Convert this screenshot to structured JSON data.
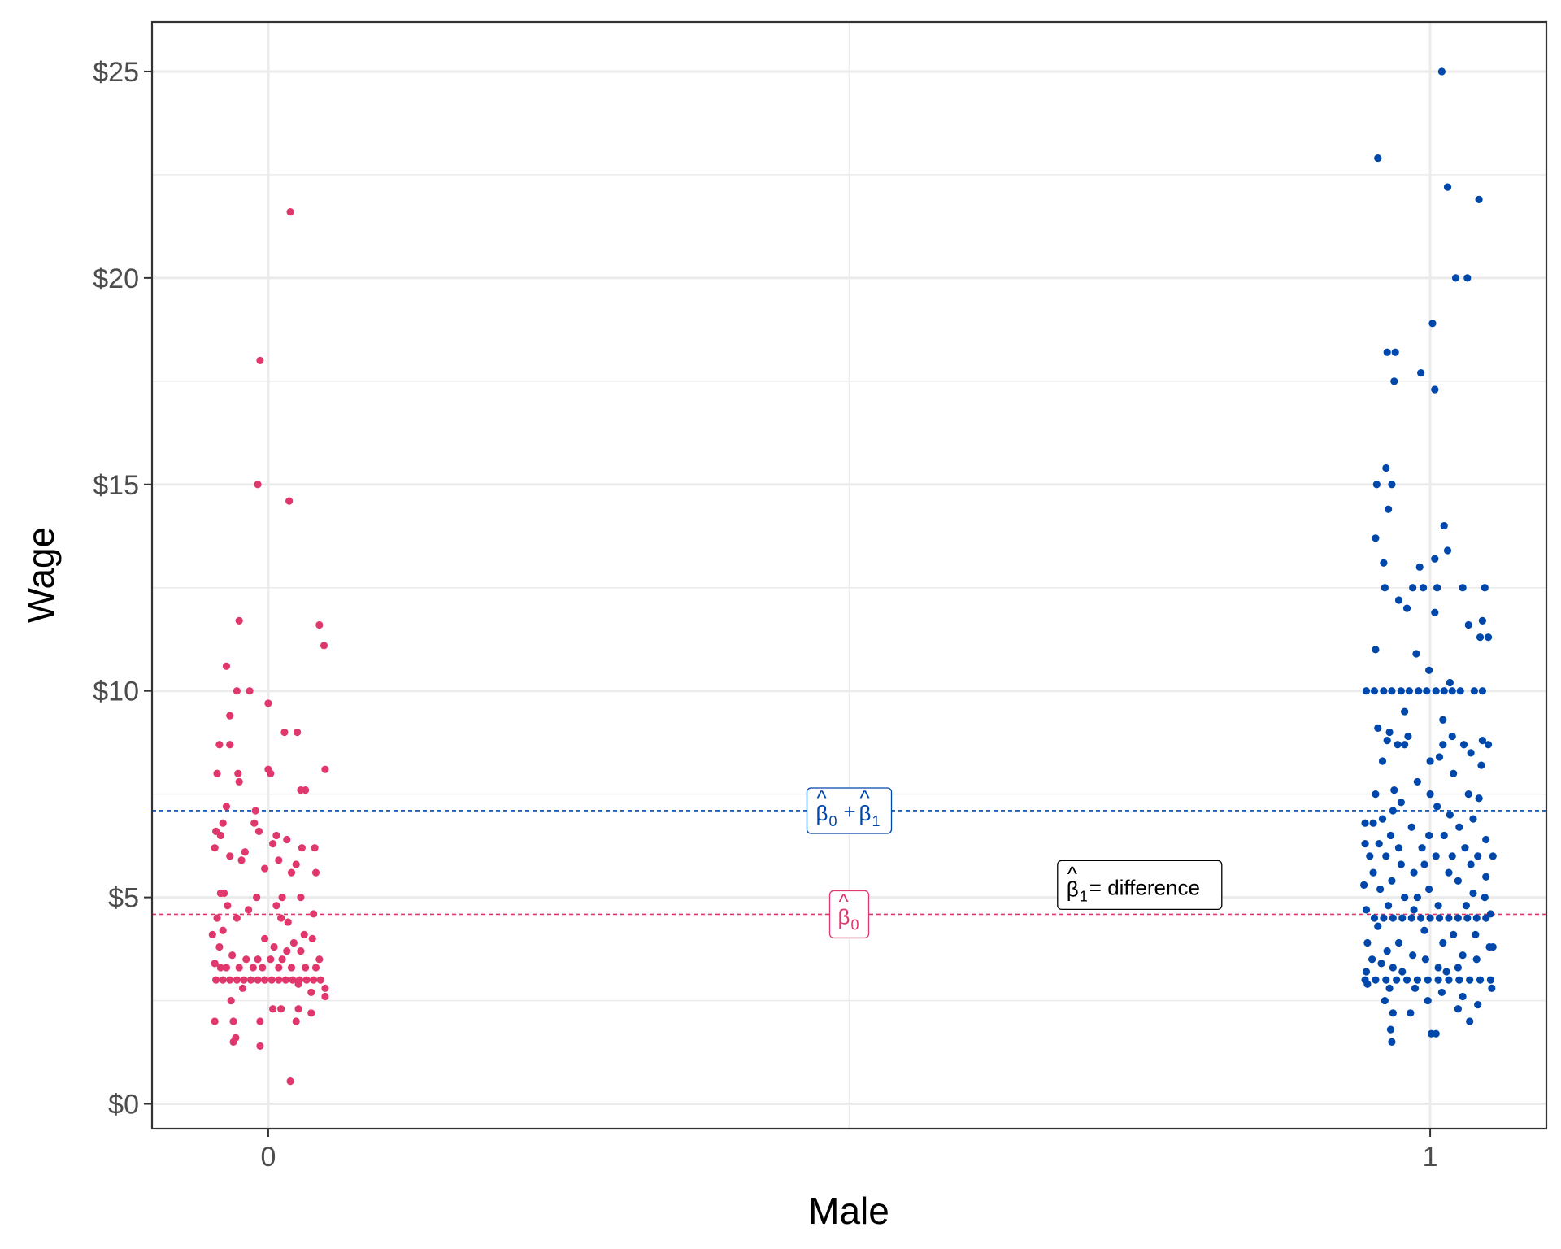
{
  "chart_data": {
    "type": "scatter",
    "xlabel": "Male",
    "ylabel": "Wage",
    "x_ticks": [
      "0",
      "1"
    ],
    "y_ticks": [
      "$0",
      "$5",
      "$10",
      "$15",
      "$20",
      "$25"
    ],
    "y_tick_values": [
      0,
      5,
      10,
      15,
      20,
      25
    ],
    "ylim": [
      -0.6,
      26.2
    ],
    "xlim": [
      -0.1,
      1.1
    ],
    "grid": true,
    "legend": "none",
    "colors": {
      "female": "#e0386c",
      "male": "#0047ab",
      "difference": "#000000"
    },
    "hlines": [
      {
        "y": 7.1,
        "color": "#0047ab",
        "style": "dashed"
      },
      {
        "y": 4.59,
        "color": "#e0386c",
        "style": "dashed"
      }
    ],
    "annotations": {
      "b0b1": {
        "text": "β̂0 + β̂1",
        "x": 0.5,
        "y": 7.1,
        "color": "#0047ab"
      },
      "b0": {
        "text": "β̂0",
        "x": 0.5,
        "y": 4.59,
        "color": "#e0386c"
      },
      "diff": {
        "beta": "β",
        "hat": "^",
        "sub": "1",
        "label": "= difference",
        "x": 0.75,
        "y": 5.3,
        "color": "#000000"
      }
    },
    "series": [
      {
        "group": "0",
        "color": "#e0386c",
        "points": [
          [
            0.019,
            21.6
          ],
          [
            -0.007,
            18.0
          ],
          [
            -0.009,
            15.0
          ],
          [
            0.018,
            14.6
          ],
          [
            -0.025,
            11.7
          ],
          [
            0.044,
            11.6
          ],
          [
            0.048,
            11.1
          ],
          [
            -0.036,
            10.6
          ],
          [
            -0.027,
            10.0
          ],
          [
            -0.016,
            10.0
          ],
          [
            0.0,
            9.7
          ],
          [
            -0.033,
            9.4
          ],
          [
            0.014,
            9.0
          ],
          [
            0.025,
            9.0
          ],
          [
            -0.042,
            8.7
          ],
          [
            -0.033,
            8.7
          ],
          [
            0.0,
            8.1
          ],
          [
            0.049,
            8.1
          ],
          [
            -0.044,
            8.0
          ],
          [
            -0.026,
            8.0
          ],
          [
            0.002,
            8.0
          ],
          [
            -0.025,
            7.8
          ],
          [
            0.028,
            7.6
          ],
          [
            0.032,
            7.6
          ],
          [
            -0.036,
            7.2
          ],
          [
            -0.011,
            7.1
          ],
          [
            -0.039,
            6.8
          ],
          [
            -0.012,
            6.8
          ],
          [
            -0.008,
            6.6
          ],
          [
            -0.045,
            6.6
          ],
          [
            -0.041,
            6.5
          ],
          [
            0.007,
            6.5
          ],
          [
            0.016,
            6.4
          ],
          [
            0.004,
            6.3
          ],
          [
            0.029,
            6.2
          ],
          [
            0.04,
            6.2
          ],
          [
            -0.046,
            6.2
          ],
          [
            -0.02,
            6.1
          ],
          [
            -0.033,
            6.0
          ],
          [
            -0.023,
            5.9
          ],
          [
            0.009,
            5.9
          ],
          [
            0.024,
            5.8
          ],
          [
            -0.003,
            5.7
          ],
          [
            0.041,
            5.6
          ],
          [
            0.02,
            5.6
          ],
          [
            -0.041,
            5.1
          ],
          [
            -0.038,
            5.1
          ],
          [
            -0.01,
            5.0
          ],
          [
            0.012,
            5.0
          ],
          [
            0.028,
            5.0
          ],
          [
            -0.035,
            4.8
          ],
          [
            0.007,
            4.8
          ],
          [
            -0.017,
            4.7
          ],
          [
            0.039,
            4.6
          ],
          [
            -0.044,
            4.5
          ],
          [
            -0.027,
            4.5
          ],
          [
            0.011,
            4.5
          ],
          [
            0.017,
            4.4
          ],
          [
            -0.039,
            4.2
          ],
          [
            -0.048,
            4.1
          ],
          [
            0.031,
            4.1
          ],
          [
            -0.003,
            4.0
          ],
          [
            0.038,
            4.0
          ],
          [
            0.022,
            3.9
          ],
          [
            -0.042,
            3.8
          ],
          [
            0.005,
            3.8
          ],
          [
            0.016,
            3.7
          ],
          [
            0.028,
            3.7
          ],
          [
            -0.031,
            3.6
          ],
          [
            -0.019,
            3.5
          ],
          [
            -0.009,
            3.5
          ],
          [
            0.002,
            3.5
          ],
          [
            0.012,
            3.5
          ],
          [
            0.044,
            3.5
          ],
          [
            -0.046,
            3.4
          ],
          [
            -0.041,
            3.3
          ],
          [
            -0.036,
            3.3
          ],
          [
            -0.025,
            3.3
          ],
          [
            -0.013,
            3.3
          ],
          [
            -0.005,
            3.3
          ],
          [
            0.009,
            3.3
          ],
          [
            0.02,
            3.3
          ],
          [
            0.032,
            3.3
          ],
          [
            0.041,
            3.3
          ],
          [
            -0.045,
            3.0
          ],
          [
            -0.039,
            3.0
          ],
          [
            -0.033,
            3.0
          ],
          [
            -0.027,
            3.0
          ],
          [
            -0.021,
            3.0
          ],
          [
            -0.015,
            3.0
          ],
          [
            -0.009,
            3.0
          ],
          [
            -0.003,
            3.0
          ],
          [
            0.003,
            3.0
          ],
          [
            0.009,
            3.0
          ],
          [
            0.015,
            3.0
          ],
          [
            0.021,
            3.0
          ],
          [
            0.027,
            3.0
          ],
          [
            0.033,
            3.0
          ],
          [
            0.039,
            3.0
          ],
          [
            0.045,
            3.0
          ],
          [
            0.049,
            2.8
          ],
          [
            -0.022,
            2.8
          ],
          [
            0.026,
            2.9
          ],
          [
            0.037,
            2.7
          ],
          [
            -0.032,
            2.5
          ],
          [
            0.004,
            2.3
          ],
          [
            0.011,
            2.3
          ],
          [
            0.026,
            2.3
          ],
          [
            0.037,
            2.2
          ],
          [
            0.049,
            2.6
          ],
          [
            -0.046,
            2.0
          ],
          [
            -0.03,
            2.0
          ],
          [
            -0.007,
            2.0
          ],
          [
            0.024,
            2.0
          ],
          [
            -0.028,
            1.6
          ],
          [
            -0.03,
            1.5
          ],
          [
            -0.007,
            1.4
          ],
          [
            0.019,
            0.55
          ]
        ]
      },
      {
        "group": "1",
        "color": "#0047ab",
        "points": [
          [
            1.01,
            25.0
          ],
          [
            0.955,
            22.9
          ],
          [
            1.015,
            22.2
          ],
          [
            1.042,
            21.9
          ],
          [
            1.022,
            20.0
          ],
          [
            1.032,
            20.0
          ],
          [
            1.002,
            18.9
          ],
          [
            0.963,
            18.2
          ],
          [
            0.97,
            18.2
          ],
          [
            0.992,
            17.7
          ],
          [
            0.969,
            17.5
          ],
          [
            1.004,
            17.3
          ],
          [
            0.962,
            15.4
          ],
          [
            0.954,
            15.0
          ],
          [
            0.967,
            15.0
          ],
          [
            1.012,
            14.0
          ],
          [
            0.964,
            14.4
          ],
          [
            0.953,
            13.7
          ],
          [
            1.015,
            13.4
          ],
          [
            1.004,
            13.2
          ],
          [
            0.96,
            13.1
          ],
          [
            0.991,
            13.0
          ],
          [
            0.961,
            12.5
          ],
          [
            0.985,
            12.5
          ],
          [
            0.994,
            12.5
          ],
          [
            1.006,
            12.5
          ],
          [
            1.028,
            12.5
          ],
          [
            1.047,
            12.5
          ],
          [
            0.973,
            12.2
          ],
          [
            0.98,
            12.0
          ],
          [
            1.004,
            11.9
          ],
          [
            1.045,
            11.7
          ],
          [
            1.033,
            11.6
          ],
          [
            1.05,
            11.3
          ],
          [
            1.043,
            11.3
          ],
          [
            0.953,
            11.0
          ],
          [
            0.988,
            10.9
          ],
          [
            0.999,
            10.5
          ],
          [
            1.017,
            10.2
          ],
          [
            0.945,
            10.0
          ],
          [
            0.952,
            10.0
          ],
          [
            0.96,
            10.0
          ],
          [
            0.967,
            10.0
          ],
          [
            0.975,
            10.0
          ],
          [
            0.982,
            10.0
          ],
          [
            0.99,
            10.0
          ],
          [
            0.997,
            10.0
          ],
          [
            1.005,
            10.0
          ],
          [
            1.012,
            10.0
          ],
          [
            1.019,
            10.0
          ],
          [
            1.026,
            10.0
          ],
          [
            1.038,
            10.0
          ],
          [
            1.045,
            10.0
          ],
          [
            0.978,
            9.5
          ],
          [
            1.011,
            9.3
          ],
          [
            0.955,
            9.1
          ],
          [
            0.965,
            9.0
          ],
          [
            0.981,
            8.9
          ],
          [
            1.019,
            8.9
          ],
          [
            1.045,
            8.8
          ],
          [
            0.963,
            8.8
          ],
          [
            0.972,
            8.7
          ],
          [
            0.978,
            8.7
          ],
          [
            1.011,
            8.7
          ],
          [
            1.029,
            8.7
          ],
          [
            1.05,
            8.7
          ],
          [
            1.035,
            8.5
          ],
          [
            1.008,
            8.4
          ],
          [
            0.959,
            8.3
          ],
          [
            1.0,
            8.3
          ],
          [
            1.044,
            8.2
          ],
          [
            1.02,
            8.0
          ],
          [
            0.989,
            7.8
          ],
          [
            0.969,
            7.6
          ],
          [
            0.953,
            7.5
          ],
          [
            1.0,
            7.5
          ],
          [
            1.033,
            7.5
          ],
          [
            1.042,
            7.4
          ],
          [
            0.975,
            7.3
          ],
          [
            1.006,
            7.2
          ],
          [
            0.968,
            7.1
          ],
          [
            1.017,
            7.0
          ],
          [
            0.959,
            6.9
          ],
          [
            1.037,
            6.9
          ],
          [
            0.944,
            6.8
          ],
          [
            0.951,
            6.8
          ],
          [
            0.984,
            6.7
          ],
          [
            1.025,
            6.7
          ],
          [
            0.966,
            6.5
          ],
          [
            0.999,
            6.5
          ],
          [
            1.012,
            6.5
          ],
          [
            1.048,
            6.4
          ],
          [
            0.944,
            6.3
          ],
          [
            0.956,
            6.3
          ],
          [
            0.973,
            6.2
          ],
          [
            0.993,
            6.2
          ],
          [
            1.03,
            6.2
          ],
          [
            0.948,
            6.0
          ],
          [
            0.962,
            6.0
          ],
          [
            1.005,
            6.0
          ],
          [
            1.019,
            6.0
          ],
          [
            1.041,
            6.0
          ],
          [
            1.054,
            6.0
          ],
          [
            0.975,
            5.8
          ],
          [
            0.995,
            5.8
          ],
          [
            1.035,
            5.8
          ],
          [
            0.951,
            5.6
          ],
          [
            0.986,
            5.6
          ],
          [
            1.016,
            5.6
          ],
          [
            1.048,
            5.5
          ],
          [
            0.967,
            5.4
          ],
          [
            1.024,
            5.4
          ],
          [
            0.943,
            5.3
          ],
          [
            0.957,
            5.2
          ],
          [
            0.999,
            5.2
          ],
          [
            1.037,
            5.1
          ],
          [
            0.978,
            5.0
          ],
          [
            0.989,
            5.0
          ],
          [
            1.047,
            5.0
          ],
          [
            0.964,
            4.8
          ],
          [
            1.007,
            4.8
          ],
          [
            1.031,
            4.8
          ],
          [
            0.945,
            4.7
          ],
          [
            0.986,
            4.7
          ],
          [
            1.052,
            4.6
          ],
          [
            0.952,
            4.5
          ],
          [
            0.96,
            4.5
          ],
          [
            0.968,
            4.5
          ],
          [
            0.976,
            4.5
          ],
          [
            0.984,
            4.5
          ],
          [
            0.992,
            4.5
          ],
          [
            1.0,
            4.5
          ],
          [
            1.008,
            4.5
          ],
          [
            1.016,
            4.5
          ],
          [
            1.024,
            4.5
          ],
          [
            1.032,
            4.5
          ],
          [
            1.04,
            4.5
          ],
          [
            1.048,
            4.5
          ],
          [
            0.955,
            4.3
          ],
          [
            0.995,
            4.2
          ],
          [
            1.02,
            4.1
          ],
          [
            1.039,
            4.1
          ],
          [
            0.946,
            3.9
          ],
          [
            0.973,
            3.9
          ],
          [
            1.011,
            3.9
          ],
          [
            1.051,
            3.8
          ],
          [
            1.054,
            3.8
          ],
          [
            0.963,
            3.7
          ],
          [
            0.985,
            3.6
          ],
          [
            1.028,
            3.6
          ],
          [
            0.95,
            3.5
          ],
          [
            0.996,
            3.5
          ],
          [
            1.04,
            3.5
          ],
          [
            0.958,
            3.4
          ],
          [
            0.968,
            3.3
          ],
          [
            1.007,
            3.3
          ],
          [
            1.024,
            3.3
          ],
          [
            0.945,
            3.2
          ],
          [
            0.976,
            3.2
          ],
          [
            1.014,
            3.2
          ],
          [
            0.944,
            3.0
          ],
          [
            0.953,
            3.0
          ],
          [
            0.962,
            3.0
          ],
          [
            0.971,
            3.0
          ],
          [
            0.98,
            3.0
          ],
          [
            0.989,
            3.0
          ],
          [
            0.998,
            3.0
          ],
          [
            1.007,
            3.0
          ],
          [
            1.016,
            3.0
          ],
          [
            1.025,
            3.0
          ],
          [
            1.034,
            3.0
          ],
          [
            1.043,
            3.0
          ],
          [
            1.052,
            3.0
          ],
          [
            0.946,
            2.9
          ],
          [
            0.965,
            2.8
          ],
          [
            0.987,
            2.8
          ],
          [
            1.01,
            2.7
          ],
          [
            1.028,
            2.6
          ],
          [
            1.053,
            2.8
          ],
          [
            0.961,
            2.5
          ],
          [
            0.998,
            2.5
          ],
          [
            1.041,
            2.4
          ],
          [
            1.024,
            2.3
          ],
          [
            0.968,
            2.2
          ],
          [
            0.983,
            2.2
          ],
          [
            1.034,
            2.0
          ],
          [
            0.966,
            1.8
          ],
          [
            1.001,
            1.7
          ],
          [
            1.005,
            1.7
          ],
          [
            0.967,
            1.5
          ]
        ]
      }
    ]
  }
}
